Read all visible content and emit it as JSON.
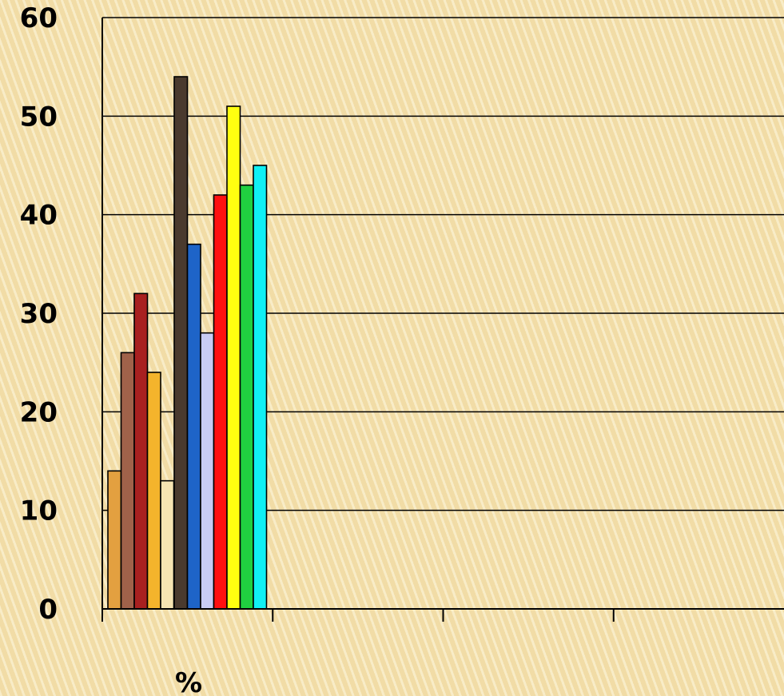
{
  "chart_data": {
    "type": "bar",
    "xlabel": "%",
    "ylabel": "",
    "ylim": [
      0,
      60
    ],
    "yticks": [
      0,
      10,
      20,
      30,
      40,
      50,
      60
    ],
    "grid": true,
    "legend": "none",
    "groups": [
      {
        "bars": [
          {
            "value": 14,
            "color": "#e3a040"
          },
          {
            "value": 26,
            "color": "#a0624a"
          },
          {
            "value": 32,
            "color": "#a82020"
          },
          {
            "value": 24,
            "color": "#f4b42c"
          },
          {
            "value": 13,
            "color": "#f6e4b2"
          }
        ]
      },
      {
        "bars": [
          {
            "value": 54,
            "color": "#4a3a2e"
          },
          {
            "value": 37,
            "color": "#1e64c8"
          },
          {
            "value": 28,
            "color": "#c8ccf4"
          },
          {
            "value": 42,
            "color": "#ff1010"
          },
          {
            "value": 51,
            "color": "#ffff10"
          },
          {
            "value": 43,
            "color": "#20d040"
          },
          {
            "value": 45,
            "color": "#10f0f4"
          }
        ]
      }
    ],
    "category_count": 4
  }
}
